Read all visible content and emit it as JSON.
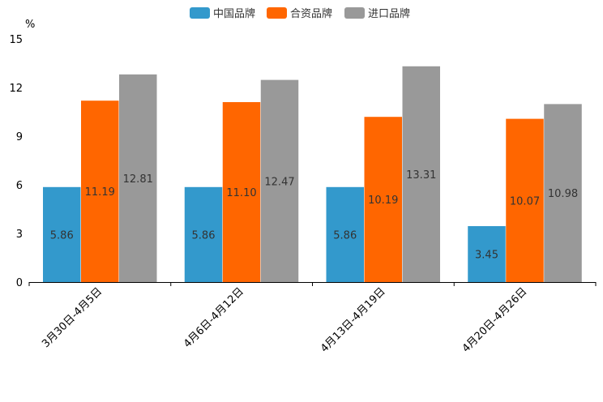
{
  "chart_data": {
    "type": "bar",
    "title": "",
    "xlabel": "",
    "ylabel": "%",
    "ylim": [
      0,
      15
    ],
    "yticks": [
      0,
      3,
      6,
      9,
      12,
      15
    ],
    "categories": [
      "3月30日-4月5日",
      "4月6日-4月12日",
      "4月13日-4月19日",
      "4月20日-4月26日"
    ],
    "series": [
      {
        "name": "中国品牌",
        "color": "#3399cc",
        "values": [
          5.86,
          5.86,
          5.86,
          3.45
        ],
        "labels": [
          "5.86",
          "5.86",
          "5.86",
          "3.45"
        ]
      },
      {
        "name": "合资品牌",
        "color": "#ff6600",
        "values": [
          11.19,
          11.1,
          10.19,
          10.07
        ],
        "labels": [
          "11.19",
          "11.10",
          "10.19",
          "10.07"
        ]
      },
      {
        "name": "进口品牌",
        "color": "#999999",
        "values": [
          12.81,
          12.47,
          13.31,
          10.98
        ],
        "labels": [
          "12.81",
          "12.47",
          "13.31",
          "10.98"
        ]
      }
    ],
    "legend": "top-center",
    "grid": false
  }
}
